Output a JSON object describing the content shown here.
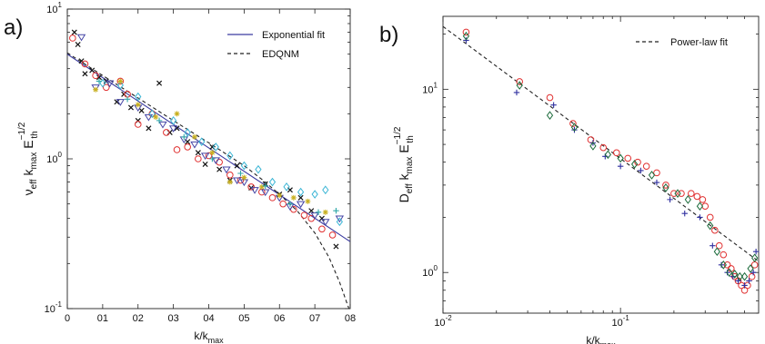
{
  "chart_data": [
    {
      "panel_label": "a)",
      "type": "scatter",
      "y_scale": "log",
      "xlim": [
        0,
        0.8
      ],
      "ylim": [
        0.1,
        10
      ],
      "x_ticks": [
        {
          "v": 0,
          "label": "0"
        },
        {
          "v": 0.1,
          "label": "01"
        },
        {
          "v": 0.2,
          "label": "02"
        },
        {
          "v": 0.3,
          "label": "03"
        },
        {
          "v": 0.4,
          "label": "04"
        },
        {
          "v": 0.5,
          "label": "05"
        },
        {
          "v": 0.6,
          "label": "06"
        },
        {
          "v": 0.7,
          "label": "07"
        },
        {
          "v": 0.8,
          "label": "08"
        }
      ],
      "y_ticks": [
        {
          "v": 0.1,
          "label": "10",
          "exp": "-1"
        },
        {
          "v": 1,
          "label": "10",
          "exp": "0"
        },
        {
          "v": 10,
          "label": "10",
          "exp": "1"
        }
      ],
      "xlabel": {
        "base": "k/k",
        "sub": "max"
      },
      "ylabel": {
        "p1": "ν",
        "s1": "eff",
        "p2": " k",
        "s2": "max",
        "p3": " E",
        "sup": "−1/2",
        "s3": "th"
      },
      "legend": {
        "position": "top-right",
        "entries": [
          {
            "name": "Exponential fit",
            "style": "solid",
            "color": "#3a3aa0"
          },
          {
            "name": "EDQNM",
            "style": "dashed",
            "color": "#222222"
          }
        ]
      },
      "lines": [
        {
          "kind": "exponential",
          "color": "#3a3aa0",
          "dash": false,
          "points": [
            [
              0,
              5.0
            ],
            [
              0.8,
              0.28
            ]
          ]
        },
        {
          "kind": "edqnm",
          "color": "#222222",
          "dash": true,
          "points": [
            [
              0,
              5.1
            ],
            [
              0.1,
              3.6
            ],
            [
              0.2,
              2.55
            ],
            [
              0.3,
              1.8
            ],
            [
              0.4,
              1.28
            ],
            [
              0.5,
              0.9
            ],
            [
              0.55,
              0.73
            ],
            [
              0.6,
              0.58
            ],
            [
              0.65,
              0.45
            ],
            [
              0.7,
              0.32
            ],
            [
              0.74,
              0.22
            ],
            [
              0.77,
              0.15
            ],
            [
              0.79,
              0.11
            ],
            [
              0.8,
              0.095
            ]
          ]
        }
      ],
      "series": [
        {
          "marker": "x",
          "color": "#111111",
          "points": [
            [
              0.02,
              7.0
            ],
            [
              0.03,
              5.8
            ],
            [
              0.04,
              4.5
            ],
            [
              0.05,
              3.7
            ],
            [
              0.07,
              3.9
            ],
            [
              0.09,
              3.5
            ],
            [
              0.11,
              3.3
            ],
            [
              0.14,
              2.4
            ],
            [
              0.16,
              2.7
            ],
            [
              0.18,
              2.2
            ],
            [
              0.2,
              1.8
            ],
            [
              0.21,
              2.1
            ],
            [
              0.23,
              1.6
            ],
            [
              0.26,
              3.2
            ],
            [
              0.29,
              1.5
            ],
            [
              0.31,
              1.6
            ],
            [
              0.34,
              1.3
            ],
            [
              0.37,
              1.1
            ],
            [
              0.39,
              0.92
            ],
            [
              0.41,
              1.2
            ],
            [
              0.43,
              0.85
            ],
            [
              0.46,
              0.72
            ],
            [
              0.48,
              0.9
            ],
            [
              0.52,
              0.64
            ],
            [
              0.56,
              0.68
            ],
            [
              0.6,
              0.58
            ],
            [
              0.63,
              0.62
            ],
            [
              0.66,
              0.55
            ],
            [
              0.69,
              0.45
            ],
            [
              0.72,
              0.4
            ],
            [
              0.76,
              0.26
            ]
          ]
        },
        {
          "marker": "circle",
          "color": "#e03030",
          "points": [
            [
              0.015,
              6.4
            ],
            [
              0.05,
              4.3
            ],
            [
              0.08,
              3.6
            ],
            [
              0.11,
              3.0
            ],
            [
              0.15,
              3.3
            ],
            [
              0.17,
              2.7
            ],
            [
              0.2,
              1.7
            ],
            [
              0.24,
              2.0
            ],
            [
              0.28,
              1.5
            ],
            [
              0.31,
              1.15
            ],
            [
              0.34,
              1.2
            ],
            [
              0.37,
              1.0
            ],
            [
              0.4,
              1.05
            ],
            [
              0.43,
              0.95
            ],
            [
              0.46,
              0.78
            ],
            [
              0.49,
              0.72
            ],
            [
              0.52,
              0.65
            ],
            [
              0.55,
              0.6
            ],
            [
              0.58,
              0.55
            ],
            [
              0.61,
              0.5
            ],
            [
              0.64,
              0.46
            ],
            [
              0.67,
              0.42
            ],
            [
              0.69,
              0.4
            ],
            [
              0.72,
              0.34
            ],
            [
              0.75,
              0.31
            ]
          ]
        },
        {
          "marker": "triangle-down",
          "color": "#4545a5",
          "points": [
            [
              0.04,
              6.5
            ],
            [
              0.08,
              3.0
            ],
            [
              0.12,
              3.2
            ],
            [
              0.15,
              2.4
            ],
            [
              0.2,
              2.2
            ],
            [
              0.23,
              1.9
            ],
            [
              0.27,
              1.7
            ],
            [
              0.3,
              1.6
            ],
            [
              0.33,
              1.35
            ],
            [
              0.36,
              1.25
            ],
            [
              0.39,
              1.05
            ],
            [
              0.42,
              0.98
            ],
            [
              0.45,
              0.85
            ],
            [
              0.48,
              0.72
            ],
            [
              0.5,
              0.7
            ],
            [
              0.53,
              0.62
            ],
            [
              0.56,
              0.6
            ],
            [
              0.6,
              0.55
            ],
            [
              0.63,
              0.48
            ],
            [
              0.66,
              0.5
            ],
            [
              0.7,
              0.42
            ],
            [
              0.73,
              0.38
            ],
            [
              0.77,
              0.4
            ]
          ]
        },
        {
          "marker": "diamond",
          "color": "#3ab5d5",
          "points": [
            [
              0.1,
              3.2
            ],
            [
              0.15,
              3.1
            ],
            [
              0.2,
              2.6
            ],
            [
              0.24,
              2.0
            ],
            [
              0.3,
              1.8
            ],
            [
              0.34,
              1.5
            ],
            [
              0.38,
              1.3
            ],
            [
              0.42,
              1.2
            ],
            [
              0.46,
              1.05
            ],
            [
              0.5,
              0.9
            ],
            [
              0.54,
              0.85
            ],
            [
              0.58,
              0.7
            ],
            [
              0.62,
              0.65
            ],
            [
              0.66,
              0.6
            ],
            [
              0.7,
              0.58
            ],
            [
              0.73,
              0.62
            ],
            [
              0.77,
              0.38
            ]
          ]
        },
        {
          "marker": "star",
          "color": "#c8b020",
          "points": [
            [
              0.08,
              2.9
            ],
            [
              0.15,
              3.3
            ],
            [
              0.2,
              2.3
            ],
            [
              0.25,
              1.9
            ],
            [
              0.31,
              2.0
            ],
            [
              0.36,
              1.4
            ],
            [
              0.41,
              1.1
            ],
            [
              0.46,
              0.7
            ],
            [
              0.5,
              0.75
            ],
            [
              0.55,
              0.65
            ],
            [
              0.6,
              0.57
            ],
            [
              0.64,
              0.55
            ],
            [
              0.68,
              0.52
            ],
            [
              0.73,
              0.44
            ]
          ]
        },
        {
          "marker": "plus",
          "color": "#30a8a8",
          "points": [
            [
              0.09,
              3.3
            ],
            [
              0.17,
              2.5
            ],
            [
              0.26,
              1.8
            ],
            [
              0.33,
              1.4
            ],
            [
              0.41,
              1.0
            ],
            [
              0.49,
              0.8
            ],
            [
              0.56,
              0.66
            ],
            [
              0.63,
              0.5
            ],
            [
              0.71,
              0.44
            ],
            [
              0.76,
              0.45
            ]
          ]
        }
      ]
    },
    {
      "panel_label": "b)",
      "type": "scatter",
      "x_scale": "log",
      "y_scale": "log",
      "xlim": [
        0.01,
        0.6
      ],
      "ylim": [
        0.6,
        25
      ],
      "x_ticks": [
        {
          "v": 0.01,
          "label": "10",
          "exp": "-2"
        },
        {
          "v": 0.1,
          "label": "10",
          "exp": "-1"
        }
      ],
      "y_ticks": [
        {
          "v": 1,
          "label": "10",
          "exp": "0"
        },
        {
          "v": 10,
          "label": "10",
          "exp": "1"
        }
      ],
      "xlabel": {
        "base": "k/k",
        "sub": "max"
      },
      "ylabel": {
        "p1": "D",
        "s1": "eff",
        "p2": " k",
        "s2": "max",
        "p3": " E",
        "sup": "−1/2",
        "s3": "th"
      },
      "legend": {
        "position": "top-right",
        "entries": [
          {
            "name": "Power-law fit",
            "style": "dashed",
            "color": "#222222"
          }
        ]
      },
      "lines": [
        {
          "kind": "power-law",
          "color": "#222222",
          "dash": true,
          "points": [
            [
              0.01,
              22.0
            ],
            [
              0.6,
              1.15
            ]
          ]
        }
      ],
      "series": [
        {
          "marker": "circle",
          "color": "#e03030",
          "points": [
            [
              0.0135,
              20.5
            ],
            [
              0.027,
              11.0
            ],
            [
              0.04,
              9.0
            ],
            [
              0.054,
              6.5
            ],
            [
              0.068,
              5.3
            ],
            [
              0.08,
              4.8
            ],
            [
              0.095,
              4.5
            ],
            [
              0.11,
              4.2
            ],
            [
              0.125,
              4.0
            ],
            [
              0.14,
              3.8
            ],
            [
              0.16,
              3.5
            ],
            [
              0.18,
              3.0
            ],
            [
              0.2,
              2.7
            ],
            [
              0.22,
              2.7
            ],
            [
              0.25,
              2.7
            ],
            [
              0.27,
              2.6
            ],
            [
              0.29,
              2.5
            ],
            [
              0.3,
              2.3
            ],
            [
              0.32,
              2.0
            ],
            [
              0.34,
              1.7
            ],
            [
              0.36,
              1.4
            ],
            [
              0.38,
              1.25
            ],
            [
              0.4,
              1.1
            ],
            [
              0.42,
              1.05
            ],
            [
              0.44,
              0.95
            ],
            [
              0.46,
              0.9
            ],
            [
              0.48,
              0.85
            ],
            [
              0.5,
              0.8
            ],
            [
              0.52,
              0.85
            ],
            [
              0.55,
              0.95
            ],
            [
              0.57,
              1.1
            ]
          ]
        },
        {
          "marker": "plus",
          "color": "#3030a0",
          "points": [
            [
              0.0135,
              18.5
            ],
            [
              0.026,
              9.6
            ],
            [
              0.042,
              8.2
            ],
            [
              0.055,
              6.0
            ],
            [
              0.07,
              5.1
            ],
            [
              0.082,
              4.3
            ],
            [
              0.1,
              3.8
            ],
            [
              0.13,
              3.6
            ],
            [
              0.16,
              3.1
            ],
            [
              0.19,
              2.5
            ],
            [
              0.23,
              2.1
            ],
            [
              0.28,
              2.0
            ],
            [
              0.33,
              1.4
            ],
            [
              0.37,
              1.1
            ],
            [
              0.4,
              1.0
            ],
            [
              0.43,
              0.95
            ],
            [
              0.46,
              0.9
            ],
            [
              0.5,
              0.85
            ],
            [
              0.53,
              0.9
            ],
            [
              0.56,
              1.0
            ],
            [
              0.58,
              1.3
            ]
          ]
        },
        {
          "marker": "diamond",
          "color": "#1a6a3a",
          "points": [
            [
              0.0135,
              19.5
            ],
            [
              0.027,
              10.5
            ],
            [
              0.04,
              7.2
            ],
            [
              0.055,
              6.2
            ],
            [
              0.07,
              4.9
            ],
            [
              0.085,
              4.4
            ],
            [
              0.1,
              4.2
            ],
            [
              0.12,
              3.9
            ],
            [
              0.15,
              3.4
            ],
            [
              0.18,
              2.9
            ],
            [
              0.21,
              2.7
            ],
            [
              0.24,
              2.5
            ],
            [
              0.28,
              2.3
            ],
            [
              0.32,
              1.8
            ],
            [
              0.35,
              1.3
            ],
            [
              0.38,
              1.1
            ],
            [
              0.41,
              1.0
            ],
            [
              0.44,
              0.98
            ],
            [
              0.47,
              0.95
            ],
            [
              0.5,
              0.95
            ],
            [
              0.54,
              1.05
            ],
            [
              0.57,
              1.2
            ]
          ]
        }
      ]
    }
  ]
}
